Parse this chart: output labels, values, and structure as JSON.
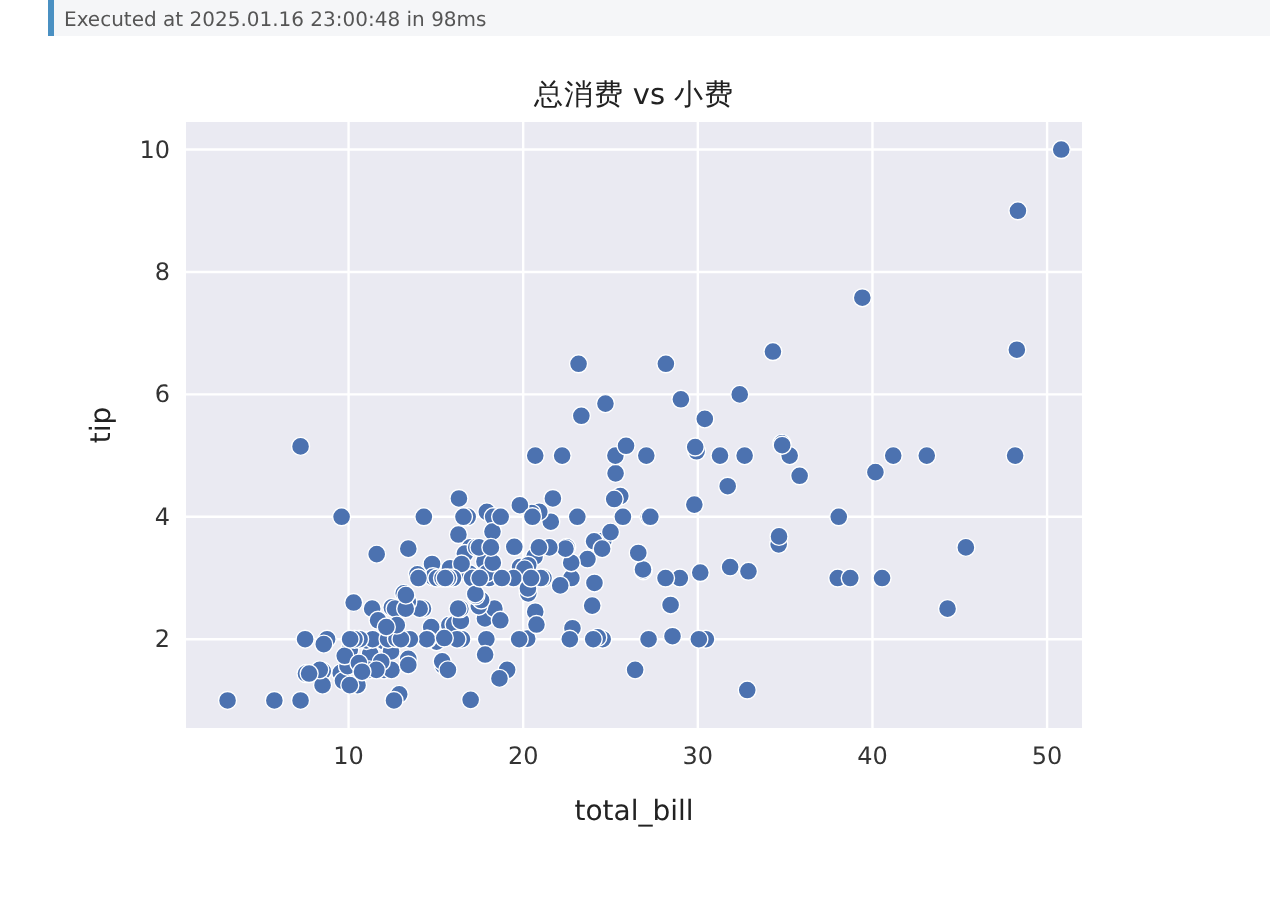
{
  "chart_data": {
    "type": "scatter",
    "title": "总消费 vs 小费",
    "xlabel": "total_bill",
    "ylabel": "tip",
    "annotations": [
      "Executed at 2025.01.16 23:00:48 in 98ms"
    ],
    "xlim": [
      0.69,
      52
    ],
    "ylim": [
      0.55,
      10.45
    ],
    "xticks": [
      10,
      20,
      30,
      40,
      50
    ],
    "yticks": [
      2,
      4,
      6,
      8,
      10
    ],
    "grid": true,
    "marker": "circle",
    "series": [
      {
        "color": "#4c72b0",
        "x": [
          16.99,
          23.68,
          24.59,
          25.29,
          8.77,
          26.88,
          15.04,
          14.78,
          35.26,
          15.42,
          14.83,
          21.58,
          16.29,
          16.97,
          20.65,
          17.92,
          20.29,
          15.77,
          39.42,
          19.82,
          17.81,
          21.7,
          9.55,
          18.35,
          15.06,
          20.69,
          17.78,
          24.06,
          16.93,
          18.69,
          31.27,
          16.04,
          17.46,
          13.94,
          9.68,
          30.4,
          22.23,
          32.4,
          28.55,
          18.04,
          10.29,
          34.81,
          9.94,
          25.56,
          19.49,
          38.01,
          26.41,
          11.24,
          48.27,
          20.29,
          11.02,
          17.59,
          20.08,
          3.07,
          20.23,
          12.02,
          17.07,
          26.86,
          25.28,
          14.73,
          10.51,
          17.92,
          27.2,
          22.76,
          17.29,
          19.44,
          16.66,
          10.07,
          32.68,
          34.83,
          18.28,
          24.71,
          21.16,
          28.97,
          22.49,
          5.75,
          16.32,
          22.75,
          40.17,
          27.28,
          12.03,
          21.01,
          12.46,
          11.35,
          15.38,
          44.3,
          22.42,
          20.92,
          15.36,
          20.49,
          25.21,
          18.24,
          14.31,
          14.0,
          7.25,
          38.07,
          23.95,
          25.71,
          17.31,
          29.93,
          12.43,
          24.08,
          11.69,
          13.42,
          14.26,
          12.48,
          29.8,
          8.52,
          14.52,
          11.38,
          22.82,
          19.08,
          20.27,
          11.17,
          12.26,
          18.26,
          8.51,
          13.16,
          17.47,
          34.3,
          41.19,
          27.05,
          16.43,
          8.35,
          18.64,
          11.87,
          9.78,
          7.51,
          14.07,
          17.26,
          24.55,
          19.77,
          29.85,
          48.17,
          25.0,
          13.39,
          16.49,
          21.5,
          12.66,
          16.21,
          17.51,
          24.52,
          20.76,
          31.71,
          10.59,
          10.63,
          50.81,
          15.81,
          7.25,
          31.85,
          16.82,
          32.9,
          17.89,
          14.48,
          9.6,
          34.63,
          34.65,
          23.33,
          45.35,
          23.17,
          40.55,
          20.69,
          20.9,
          30.46,
          18.15,
          23.1,
          15.69,
          19.81,
          28.44,
          15.48,
          16.58,
          7.56,
          10.34,
          43.11,
          13.51,
          18.71,
          12.74,
          13.0,
          16.4,
          20.53,
          16.47,
          26.59,
          38.73,
          24.27,
          12.76,
          30.06,
          25.89,
          48.33,
          13.27,
          28.17,
          12.9,
          28.15,
          11.59,
          7.74,
          30.14,
          12.16,
          13.42,
          8.58,
          15.98,
          13.42,
          16.27,
          10.09,
          20.45,
          13.28,
          22.12,
          24.01,
          15.69,
          11.61,
          10.77,
          15.53,
          10.07,
          12.6,
          32.83,
          35.83,
          29.03,
          27.18,
          22.67,
          17.82,
          18.78
        ],
        "values": [
          1.01,
          3.31,
          3.61,
          4.71,
          2.0,
          3.12,
          1.96,
          3.23,
          5.0,
          1.57,
          3.02,
          3.92,
          3.71,
          3.5,
          3.35,
          4.08,
          2.75,
          2.23,
          7.58,
          3.18,
          2.34,
          4.3,
          1.45,
          2.5,
          3.0,
          2.45,
          3.27,
          3.6,
          3.07,
          2.31,
          5.0,
          2.24,
          2.54,
          3.06,
          1.32,
          5.6,
          5.0,
          6.0,
          2.05,
          3.0,
          2.6,
          5.2,
          1.56,
          4.34,
          3.51,
          3.0,
          1.5,
          1.76,
          6.73,
          3.21,
          1.98,
          2.64,
          3.15,
          1.0,
          2.01,
          1.97,
          3.0,
          3.14,
          5.0,
          2.2,
          1.25,
          3.08,
          4.0,
          3.0,
          2.71,
          3.0,
          3.4,
          1.83,
          5.0,
          5.17,
          4.0,
          5.85,
          3.0,
          3.0,
          3.5,
          1.0,
          4.3,
          3.25,
          4.73,
          4.0,
          1.5,
          3.0,
          1.5,
          2.5,
          3.0,
          2.5,
          3.48,
          4.08,
          1.64,
          4.06,
          4.29,
          3.76,
          4.0,
          3.0,
          1.0,
          4.0,
          2.55,
          4.0,
          3.5,
          5.07,
          1.8,
          2.92,
          2.31,
          1.68,
          2.5,
          2.52,
          4.2,
          1.48,
          2.0,
          2.0,
          2.18,
          1.5,
          2.83,
          1.5,
          2.0,
          3.25,
          1.25,
          2.75,
          3.5,
          6.7,
          5.0,
          5.0,
          2.3,
          1.5,
          1.36,
          1.63,
          1.73,
          2.0,
          2.5,
          2.74,
          2.0,
          2.0,
          5.14,
          5.0,
          3.75,
          2.61,
          2.0,
          3.5,
          2.5,
          2.0,
          3.0,
          3.48,
          2.24,
          4.5,
          1.61,
          2.0,
          10.0,
          3.16,
          5.15,
          3.18,
          4.0,
          3.11,
          2.0,
          2.0,
          4.0,
          3.55,
          3.68,
          5.65,
          3.5,
          6.5,
          3.0,
          5.0,
          3.5,
          2.0,
          3.5,
          4.0,
          1.5,
          4.19,
          2.56,
          2.02,
          4.0,
          1.44,
          2.0,
          5.0,
          2.0,
          4.0,
          2.01,
          2.0,
          2.5,
          4.0,
          3.23,
          3.41,
          3.0,
          2.03,
          2.23,
          2.0,
          5.16,
          9.0,
          2.5,
          6.5,
          1.1,
          3.0,
          1.5,
          1.44,
          3.09,
          2.2,
          3.48,
          1.92,
          3.0,
          1.58,
          2.5,
          2.0,
          3.0,
          2.72,
          2.88,
          2.0,
          3.0,
          3.39,
          1.47,
          3.0,
          1.25,
          1.0,
          1.17,
          4.67,
          5.92,
          2.0,
          2.0,
          1.75,
          3.0
        ]
      }
    ]
  }
}
